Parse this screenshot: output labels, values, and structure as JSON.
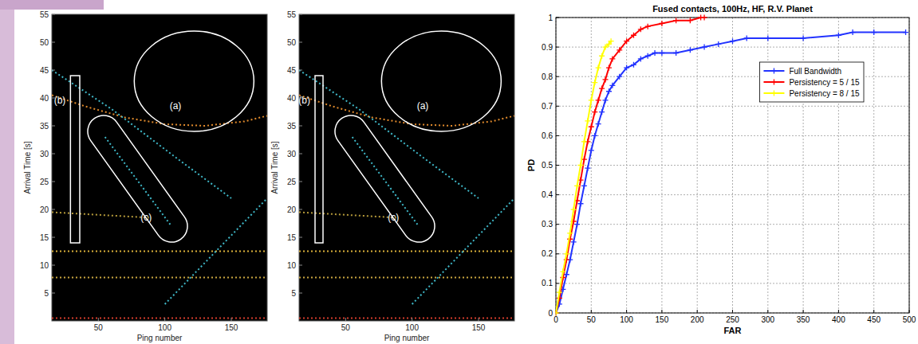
{
  "chart_data": [
    {
      "type": "line",
      "x_label": "Ping number",
      "y_label": "Arrival Time [s]",
      "xlim": [
        15,
        177
      ],
      "ylim": [
        0,
        55
      ],
      "xticks": [
        50,
        100,
        150
      ],
      "yticks": [
        5,
        10,
        15,
        20,
        25,
        30,
        35,
        40,
        45,
        50,
        55
      ],
      "line_style": "dotted",
      "series": [
        {
          "color": "#e08a2c",
          "x": [
            15,
            40,
            70,
            100,
            130,
            160,
            177
          ],
          "values": [
            40.5,
            38.5,
            36.5,
            35.3,
            35,
            35.8,
            36.8
          ]
        },
        {
          "color": "#d9b03a",
          "x": [
            15,
            177
          ],
          "values": [
            12.5,
            12.5
          ]
        },
        {
          "color": "#c9a640",
          "x": [
            15,
            177
          ],
          "values": [
            7.8,
            7.8
          ]
        },
        {
          "color": "#3fb8c8",
          "x": [
            55,
            105
          ],
          "values": [
            33,
            17
          ]
        },
        {
          "color": "#3fb8c8",
          "x": [
            15,
            60,
            110,
            150
          ],
          "values": [
            45,
            38,
            29,
            22
          ]
        },
        {
          "color": "#3fb8c8",
          "x": [
            100,
            177
          ],
          "values": [
            3,
            22
          ]
        },
        {
          "color": "#b59a3a",
          "x": [
            15,
            90
          ],
          "values": [
            19.5,
            18.5
          ]
        },
        {
          "color": "#d23b2b",
          "x": [
            15,
            177
          ],
          "values": [
            0.5,
            0.5
          ]
        }
      ],
      "annotations": [
        {
          "text": "(a)",
          "shape": "ellipse",
          "x": 122,
          "y": 43,
          "rx": 45,
          "ry": 9,
          "text_x": 108,
          "text_y": 38.5
        },
        {
          "text": "(b)",
          "shape": "rect",
          "x": [
            29,
            36
          ],
          "y": [
            14,
            44
          ],
          "text_x": 21,
          "text_y": 39.5
        },
        {
          "text": "(c)",
          "shape": "capsule",
          "x": [
            54,
            105
          ],
          "y": [
            34,
            17
          ],
          "text_x": 86,
          "text_y": 18.5
        }
      ]
    },
    {
      "type": "line",
      "x_label": "Ping number",
      "y_label": "Arrival Time [s]",
      "xlim": [
        15,
        177
      ],
      "ylim": [
        0,
        55
      ],
      "xticks": [
        50,
        100,
        150
      ],
      "yticks": [
        5,
        10,
        15,
        20,
        25,
        30,
        35,
        40,
        45,
        50,
        55
      ],
      "line_style": "dotted",
      "series": [
        {
          "color": "#e08a2c",
          "x": [
            15,
            40,
            70,
            100,
            130,
            160,
            177
          ],
          "values": [
            40.5,
            38.5,
            36.5,
            35.3,
            35,
            35.8,
            36.8
          ]
        },
        {
          "color": "#d9b03a",
          "x": [
            15,
            177
          ],
          "values": [
            12.5,
            12.5
          ]
        },
        {
          "color": "#c9a640",
          "x": [
            15,
            177
          ],
          "values": [
            7.8,
            7.8
          ]
        },
        {
          "color": "#3fb8c8",
          "x": [
            55,
            105
          ],
          "values": [
            33,
            17
          ]
        },
        {
          "color": "#3fb8c8",
          "x": [
            15,
            60,
            110,
            150
          ],
          "values": [
            45,
            38,
            29,
            22
          ]
        },
        {
          "color": "#3fb8c8",
          "x": [
            100,
            177
          ],
          "values": [
            3,
            22
          ]
        },
        {
          "color": "#b59a3a",
          "x": [
            15,
            90
          ],
          "values": [
            19.5,
            18.5
          ]
        },
        {
          "color": "#d23b2b",
          "x": [
            15,
            177
          ],
          "values": [
            0.5,
            0.5
          ]
        }
      ],
      "annotations": [
        {
          "text": "(a)",
          "shape": "ellipse",
          "x": 122,
          "y": 43,
          "rx": 45,
          "ry": 9,
          "text_x": 108,
          "text_y": 38.5
        },
        {
          "text": "(b)",
          "shape": "rect",
          "x": [
            27,
            33
          ],
          "y": [
            14,
            44
          ],
          "text_x": 19,
          "text_y": 39.5
        },
        {
          "text": "(c)",
          "shape": "capsule",
          "x": [
            54,
            105
          ],
          "y": [
            34,
            17
          ],
          "text_x": 86,
          "text_y": 18.5
        }
      ]
    },
    {
      "type": "line",
      "title": "Fused contacts, 100Hz, HF, R.V. Planet",
      "x_label": "FAR",
      "y_label": "PD",
      "xlim": [
        0,
        500
      ],
      "ylim": [
        0,
        1
      ],
      "xticks": [
        0,
        50,
        100,
        150,
        200,
        250,
        300,
        350,
        400,
        450,
        500
      ],
      "yticks": [
        0,
        0.1,
        0.2,
        0.3,
        0.4,
        0.5,
        0.6,
        0.7,
        0.8,
        0.9,
        1
      ],
      "grid": true,
      "legend": "center right",
      "marker": "plus",
      "line_style": "solid",
      "series": [
        {
          "name": "Full Bandwidth",
          "color": "#2233ff",
          "x": [
            0,
            5,
            10,
            15,
            20,
            25,
            30,
            35,
            40,
            45,
            50,
            55,
            60,
            65,
            70,
            75,
            80,
            90,
            100,
            110,
            120,
            130,
            140,
            150,
            170,
            190,
            210,
            230,
            250,
            270,
            300,
            350,
            400,
            420,
            450,
            495
          ],
          "values": [
            0,
            0.03,
            0.08,
            0.13,
            0.18,
            0.24,
            0.3,
            0.37,
            0.43,
            0.49,
            0.55,
            0.6,
            0.64,
            0.68,
            0.72,
            0.75,
            0.77,
            0.8,
            0.83,
            0.84,
            0.86,
            0.87,
            0.88,
            0.88,
            0.88,
            0.89,
            0.9,
            0.91,
            0.92,
            0.93,
            0.93,
            0.93,
            0.94,
            0.95,
            0.95,
            0.95
          ]
        },
        {
          "name": "Persistency = 5 / 15",
          "color": "#ff0000",
          "x": [
            0,
            5,
            10,
            15,
            20,
            25,
            30,
            35,
            40,
            45,
            50,
            55,
            60,
            65,
            70,
            75,
            80,
            90,
            100,
            110,
            120,
            130,
            150,
            170,
            190,
            205,
            210
          ],
          "values": [
            0,
            0.05,
            0.12,
            0.18,
            0.25,
            0.31,
            0.38,
            0.45,
            0.52,
            0.58,
            0.63,
            0.68,
            0.72,
            0.76,
            0.79,
            0.83,
            0.86,
            0.89,
            0.92,
            0.94,
            0.96,
            0.97,
            0.98,
            0.99,
            0.99,
            1,
            1
          ]
        },
        {
          "name": "Persistency = 8 / 15",
          "color": "#ffff00",
          "x": [
            0,
            5,
            10,
            15,
            20,
            25,
            30,
            35,
            40,
            45,
            50,
            55,
            60,
            65,
            70,
            75,
            78
          ],
          "values": [
            0,
            0.07,
            0.14,
            0.2,
            0.27,
            0.35,
            0.43,
            0.5,
            0.58,
            0.65,
            0.72,
            0.78,
            0.83,
            0.87,
            0.9,
            0.91,
            0.92
          ]
        }
      ]
    }
  ]
}
